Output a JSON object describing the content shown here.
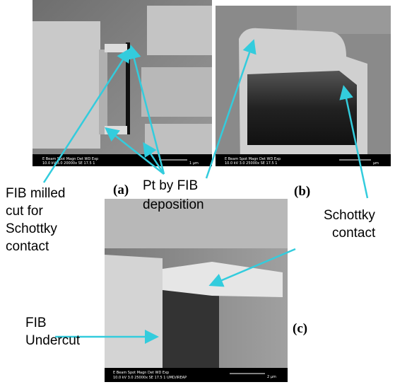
{
  "panels": [
    {
      "tag": "(a)",
      "sem_header": "E Beam  Spot  Magn   Det  WD  Exp",
      "sem_values": "10.0 kV  3.0  20000x  SE  17.5  1",
      "scale": "1 µm"
    },
    {
      "tag": "(b)",
      "sem_header": "E Beam  Spot  Magn   Det  WD  Exp",
      "sem_values": "10.0 kV  3.0  25000x  SE  17.5  1",
      "scale": "µm"
    },
    {
      "tag": "(c)",
      "sem_header": "E Beam  Spot  Magn   Det  WD  Exp",
      "sem_values": "10.0 kV  3.0  25000x  SE  17.5  1   UMD/IREAP",
      "scale": "2 µm"
    }
  ],
  "annotations": {
    "fib_milled_cut": [
      "FIB milled",
      "cut for",
      "Schottky",
      "contact"
    ],
    "pt_deposition": [
      "Pt by FIB",
      "deposition"
    ],
    "schottky_contact": [
      "Schottky",
      "contact"
    ],
    "fib_undercut": [
      "FIB",
      "Undercut"
    ]
  }
}
